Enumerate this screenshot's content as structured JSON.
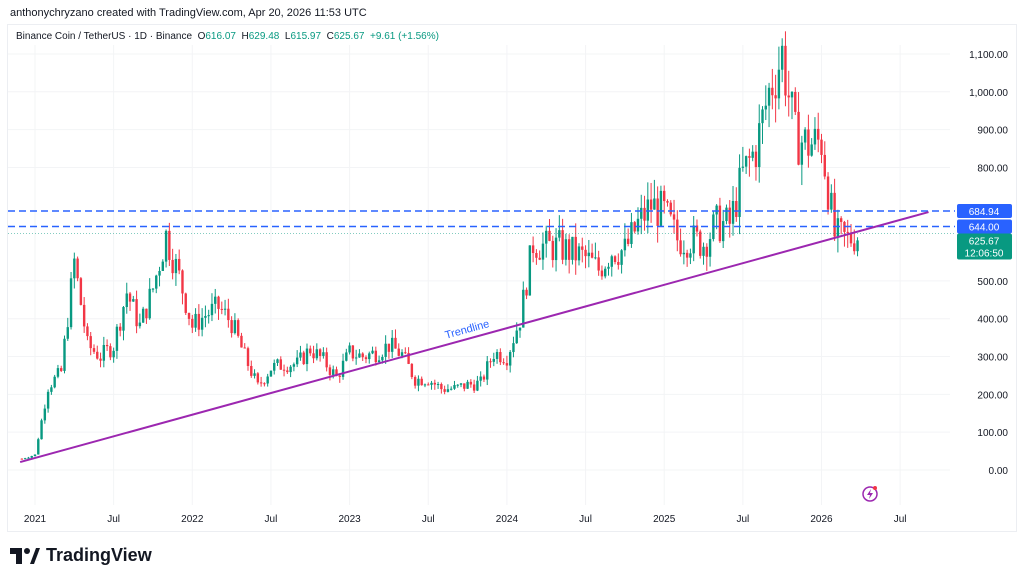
{
  "credit": "anthonychryzano created with TradingView.com, Apr 20, 2026 11:53 UTC",
  "legend": {
    "symbol": "Binance Coin / TetherUS · 1D · Binance",
    "open_label": "O",
    "open": "616.07",
    "high_label": "H",
    "high": "629.48",
    "low_label": "L",
    "low": "615.97",
    "close_label": "C",
    "close": "625.67",
    "change": "+9.61 (+1.56%)"
  },
  "logo": "TradingView",
  "colors": {
    "up": "#089981",
    "down": "#f23645",
    "levels": "#2962ff",
    "trendline": "#9c27b0"
  },
  "chart_data": {
    "type": "candlestick",
    "ylim": [
      -80,
      1180
    ],
    "grid": true,
    "y_ticks": [
      "0.00",
      "100.00",
      "200.00",
      "300.00",
      "400.00",
      "500.00",
      "800.00",
      "900.00",
      "1,000.00",
      "1,100.00"
    ],
    "y_tick_values": [
      0,
      100,
      200,
      300,
      400,
      500,
      800,
      900,
      1000,
      1100
    ],
    "x_ticks": [
      "2021",
      "Jul",
      "2022",
      "Jul",
      "2023",
      "Jul",
      "2024",
      "Jul",
      "2025",
      "Jul",
      "2026",
      "Jul"
    ],
    "x_tick_dates": [
      "2021-01",
      "2021-07",
      "2022-01",
      "2022-07",
      "2023-01",
      "2023-07",
      "2024-01",
      "2024-07",
      "2025-01",
      "2025-07",
      "2026-01",
      "2026-07"
    ],
    "monthly_close_approx": {
      "months_from": "2020-12",
      "values": [
        30,
        40,
        220,
        260,
        550,
        330,
        300,
        330,
        470,
        380,
        480,
        620,
        510,
        380,
        410,
        430,
        390,
        300,
        220,
        270,
        280,
        280,
        320,
        290,
        245,
        310,
        300,
        310,
        330,
        305,
        240,
        240,
        215,
        215,
        225,
        230,
        310,
        300,
        400,
        600,
        590,
        590,
        575,
        560,
        530,
        580,
        580,
        650,
        700,
        680,
        610,
        610,
        600,
        650,
        650,
        780,
        850,
        1000,
        1100,
        880,
        860,
        870,
        620,
        610,
        626
      ]
    },
    "horizontal_levels": [
      {
        "value": 684.94,
        "label": "684.94"
      },
      {
        "value": 644.0,
        "label": "644.00"
      }
    ],
    "last_price": {
      "value": 625.67,
      "label": "625.67",
      "countdown": "12:06:50"
    },
    "trendline": {
      "label": "Trendline",
      "start": {
        "date": "2020-11-27",
        "value": 21
      },
      "end": {
        "date": "2026-09-06",
        "value": 682
      }
    }
  }
}
